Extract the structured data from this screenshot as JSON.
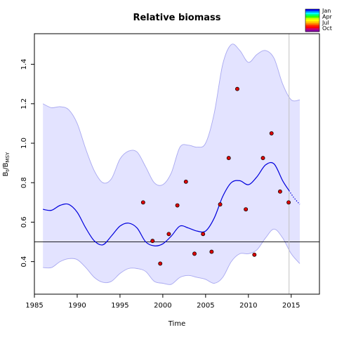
{
  "chart_data": {
    "type": "line",
    "title": "Relative biomass",
    "xlabel": "Time",
    "ylabel": "B",
    "ylabel_subscript": "t",
    "ylabel_denominator": "B",
    "ylabel_denominator_subscript": "MSY",
    "xlim": [
      1985,
      2018.3
    ],
    "ylim": [
      0.235,
      1.555
    ],
    "x_ticks": [
      1985,
      1990,
      1995,
      2000,
      2005,
      2010,
      2015
    ],
    "y_ticks": [
      0.4,
      0.6,
      0.8,
      1.0,
      1.2,
      1.4
    ],
    "reference_line_y": 0.5,
    "vertical_line_x": 2014.75,
    "band_color": "#e3e3ff",
    "band_edge_color": "#a8a8f0",
    "line_color": "#0000dd",
    "point_fill": "#dd0000",
    "series": [
      {
        "role": "upper-bound",
        "x": [
          1986,
          1987,
          1988,
          1989,
          1990,
          1991,
          1992,
          1993,
          1994,
          1995,
          1996,
          1997,
          1998,
          1999,
          2000,
          2001,
          2002,
          2003,
          2004,
          2005,
          2006,
          2007,
          2008,
          2009,
          2010,
          2011,
          2012,
          2013,
          2014,
          2015,
          2016
        ],
        "values": [
          1.2,
          1.18,
          1.185,
          1.17,
          1.1,
          0.97,
          0.86,
          0.8,
          0.82,
          0.92,
          0.96,
          0.955,
          0.88,
          0.8,
          0.79,
          0.85,
          0.98,
          0.99,
          0.98,
          1.0,
          1.15,
          1.4,
          1.5,
          1.47,
          1.41,
          1.45,
          1.47,
          1.43,
          1.3,
          1.22,
          1.22
        ]
      },
      {
        "role": "lower-bound",
        "x": [
          1986,
          1987,
          1988,
          1989,
          1990,
          1991,
          1992,
          1993,
          1994,
          1995,
          1996,
          1997,
          1998,
          1999,
          2000,
          2001,
          2002,
          2003,
          2004,
          2005,
          2006,
          2007,
          2008,
          2009,
          2010,
          2011,
          2012,
          2013,
          2014,
          2015,
          2016
        ],
        "values": [
          0.37,
          0.37,
          0.4,
          0.415,
          0.41,
          0.37,
          0.32,
          0.295,
          0.3,
          0.34,
          0.365,
          0.365,
          0.35,
          0.3,
          0.29,
          0.285,
          0.32,
          0.33,
          0.32,
          0.31,
          0.29,
          0.32,
          0.4,
          0.44,
          0.44,
          0.46,
          0.52,
          0.565,
          0.52,
          0.44,
          0.39
        ]
      },
      {
        "role": "estimate",
        "x": [
          1986,
          1987,
          1988,
          1989,
          1990,
          1991,
          1992,
          1993,
          1994,
          1995,
          1996,
          1997,
          1998,
          1999,
          2000,
          2001,
          2002,
          2003,
          2004,
          2005,
          2006,
          2007,
          2008,
          2009,
          2010,
          2011,
          2012,
          2013,
          2014,
          2014.75
        ],
        "values": [
          0.665,
          0.66,
          0.685,
          0.69,
          0.65,
          0.57,
          0.505,
          0.485,
          0.53,
          0.58,
          0.595,
          0.57,
          0.5,
          0.48,
          0.49,
          0.53,
          0.58,
          0.57,
          0.555,
          0.555,
          0.62,
          0.73,
          0.8,
          0.81,
          0.79,
          0.83,
          0.89,
          0.895,
          0.81,
          0.76
        ]
      },
      {
        "role": "prediction",
        "x": [
          2014.75,
          2015.3,
          2016
        ],
        "values": [
          0.76,
          0.725,
          0.69
        ]
      },
      {
        "role": "observations",
        "x": [
          1997.7,
          1998.8,
          1999.7,
          2000.7,
          2001.7,
          2002.7,
          2003.7,
          2004.7,
          2005.7,
          2006.7,
          2007.7,
          2008.7,
          2009.7,
          2010.7,
          2011.7,
          2012.7,
          2013.7,
          2014.7
        ],
        "values": [
          0.7,
          0.505,
          0.39,
          0.54,
          0.685,
          0.805,
          0.44,
          0.54,
          0.45,
          0.69,
          0.925,
          1.275,
          0.665,
          0.435,
          0.925,
          1.05,
          0.755,
          0.7
        ]
      }
    ],
    "legend": {
      "placement": "top-right",
      "labels": [
        "Jan",
        "Apr",
        "Jul",
        "Oct"
      ],
      "gradient_colors": [
        "#0000ff",
        "#0088ff",
        "#00ffff",
        "#00ff66",
        "#33ff00",
        "#ccff00",
        "#ffff00",
        "#ffcc00",
        "#ff8800",
        "#ff3300",
        "#ff0000",
        "#cc0066",
        "#8800aa"
      ]
    }
  }
}
